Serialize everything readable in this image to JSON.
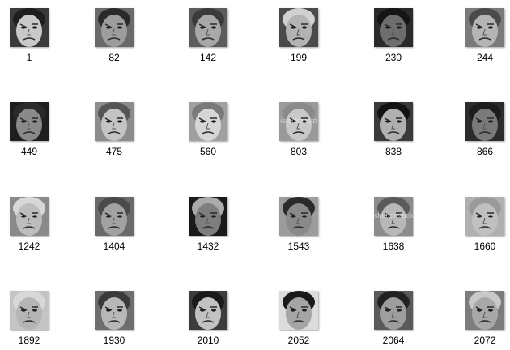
{
  "files": [
    {
      "name": "1",
      "icon": "face-thumbnail-icon",
      "tone": "#3a3a3a",
      "skin": "#c9c9c9",
      "hair": "#1e1e1e"
    },
    {
      "name": "82",
      "icon": "face-thumbnail-icon",
      "tone": "#6a6a6a",
      "skin": "#9d9d9d",
      "hair": "#2a2a2a"
    },
    {
      "name": "142",
      "icon": "face-thumbnail-icon",
      "tone": "#5c5c5c",
      "skin": "#a8a8a8",
      "hair": "#3a3a3a"
    },
    {
      "name": "199",
      "icon": "face-thumbnail-icon",
      "tone": "#4a4a4a",
      "skin": "#b3b3b3",
      "hair": "#d0d0d0"
    },
    {
      "name": "230",
      "icon": "face-thumbnail-icon",
      "tone": "#2a2a2a",
      "skin": "#6e6e6e",
      "hair": "#151515"
    },
    {
      "name": "244",
      "icon": "face-thumbnail-icon",
      "tone": "#7a7a7a",
      "skin": "#b5b5b5",
      "hair": "#4a4a4a"
    },
    {
      "name": "449",
      "icon": "face-thumbnail-icon",
      "tone": "#1f1f1f",
      "skin": "#8a8a8a",
      "hair": "#2a2a2a"
    },
    {
      "name": "475",
      "icon": "face-thumbnail-icon",
      "tone": "#8c8c8c",
      "skin": "#c4c4c4",
      "hair": "#555555"
    },
    {
      "name": "560",
      "icon": "face-thumbnail-icon",
      "tone": "#a0a0a0",
      "skin": "#d6d6d6",
      "hair": "#7a7a7a"
    },
    {
      "name": "803",
      "icon": "face-thumbnail-icon",
      "tone": "#9a9a9a",
      "skin": "#c8c8c8",
      "hair": "#8a8a8a",
      "watermark": "istockphoto"
    },
    {
      "name": "838",
      "icon": "face-thumbnail-icon",
      "tone": "#3a3a3a",
      "skin": "#b0b0b0",
      "hair": "#121212"
    },
    {
      "name": "866",
      "icon": "face-thumbnail-icon",
      "tone": "#2c2c2c",
      "skin": "#7a7a7a",
      "hair": "#1c1c1c"
    },
    {
      "name": "1242",
      "icon": "face-thumbnail-icon",
      "tone": "#8a8a8a",
      "skin": "#bdbdbd",
      "hair": "#d8d8d8"
    },
    {
      "name": "1404",
      "icon": "face-thumbnail-icon",
      "tone": "#6a6a6a",
      "skin": "#a2a2a2",
      "hair": "#4a4a4a"
    },
    {
      "name": "1432",
      "icon": "face-thumbnail-icon",
      "tone": "#1a1a1a",
      "skin": "#7e7e7e",
      "hair": "#aaaaaa"
    },
    {
      "name": "1543",
      "icon": "face-thumbnail-icon",
      "tone": "#9c9c9c",
      "skin": "#8a8a8a",
      "hair": "#2a2a2a"
    },
    {
      "name": "1638",
      "icon": "face-thumbnail-icon",
      "tone": "#8c8c8c",
      "skin": "#b8b8b8",
      "hair": "#5a5a5a",
      "watermark": "shutterstock"
    },
    {
      "name": "1660",
      "icon": "face-thumbnail-icon",
      "tone": "#b0b0b0",
      "skin": "#c0c0c0",
      "hair": "#9a9a9a"
    },
    {
      "name": "1892",
      "icon": "face-thumbnail-icon",
      "tone": "#c4c4c4",
      "skin": "#b5b5b5",
      "hair": "#d8d8d8"
    },
    {
      "name": "1930",
      "icon": "face-thumbnail-icon",
      "tone": "#6e6e6e",
      "skin": "#b8b8b8",
      "hair": "#3a3a3a"
    },
    {
      "name": "2010",
      "icon": "face-thumbnail-icon",
      "tone": "#3c3c3c",
      "skin": "#c2c2c2",
      "hair": "#1a1a1a"
    },
    {
      "name": "2052",
      "icon": "face-thumbnail-icon",
      "tone": "#dcdcdc",
      "skin": "#a5a5a5",
      "hair": "#1a1a1a"
    },
    {
      "name": "2064",
      "icon": "face-thumbnail-icon",
      "tone": "#5a5a5a",
      "skin": "#9e9e9e",
      "hair": "#222222"
    },
    {
      "name": "2072",
      "icon": "face-thumbnail-icon",
      "tone": "#7c7c7c",
      "skin": "#a8a8a8",
      "hair": "#c8c8c8"
    }
  ]
}
